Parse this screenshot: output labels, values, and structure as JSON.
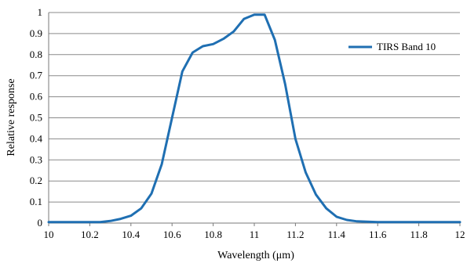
{
  "chart_data": {
    "type": "line",
    "title": "",
    "xlabel": "Wavelength (μm)",
    "ylabel": "Relative response",
    "xlim": [
      10,
      12
    ],
    "ylim": [
      0,
      1
    ],
    "x_ticks": [
      "10",
      "10.2",
      "10.4",
      "10.6",
      "10.8",
      "11",
      "11.2",
      "11.4",
      "11.6",
      "11.8",
      "12"
    ],
    "y_ticks": [
      "0",
      "0.1",
      "0.2",
      "0.3",
      "0.4",
      "0.5",
      "0.6",
      "0.7",
      "0.8",
      "0.9",
      "1"
    ],
    "grid": "horizontal",
    "legend_position": "top-right",
    "series": [
      {
        "name": "TIRS Band 10",
        "color": "#1f6fb2",
        "x": [
          10.0,
          10.1,
          10.2,
          10.25,
          10.3,
          10.35,
          10.4,
          10.45,
          10.5,
          10.55,
          10.6,
          10.65,
          10.7,
          10.75,
          10.8,
          10.85,
          10.9,
          10.95,
          11.0,
          11.05,
          11.1,
          11.15,
          11.2,
          11.25,
          11.3,
          11.35,
          11.4,
          11.45,
          11.5,
          11.6,
          11.7,
          11.8,
          11.9,
          12.0
        ],
        "y": [
          0.005,
          0.005,
          0.005,
          0.005,
          0.01,
          0.02,
          0.035,
          0.07,
          0.14,
          0.28,
          0.5,
          0.72,
          0.81,
          0.84,
          0.85,
          0.875,
          0.91,
          0.97,
          0.99,
          0.99,
          0.87,
          0.66,
          0.4,
          0.24,
          0.135,
          0.07,
          0.03,
          0.015,
          0.008,
          0.005,
          0.005,
          0.005,
          0.005,
          0.005
        ]
      }
    ]
  }
}
